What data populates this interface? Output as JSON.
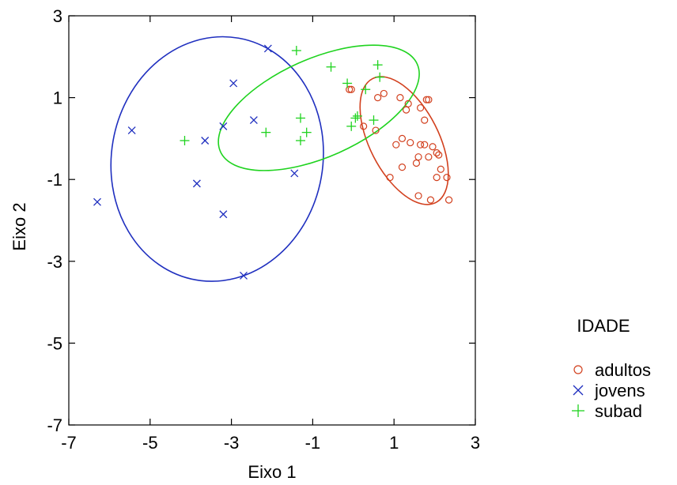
{
  "chart_data": {
    "type": "scatter",
    "xlabel": "Eixo 1",
    "ylabel": "Eixo 2",
    "xlim": [
      -7,
      3
    ],
    "ylim": [
      -7,
      3
    ],
    "xticks": [
      -7,
      -5,
      -3,
      -1,
      1,
      3
    ],
    "yticks": [
      3,
      1,
      -1,
      -3,
      -5,
      -7
    ],
    "xtick_labels": [
      "-7",
      "-5",
      "-3",
      "-1",
      "1",
      "3"
    ],
    "ytick_labels": [
      "3",
      "1",
      "-1",
      "-3",
      "-5",
      "-7"
    ],
    "grid": false,
    "legend": {
      "title": "IDADE",
      "placement": "right",
      "entries": [
        "adultos",
        "jovens",
        "subad"
      ]
    },
    "series": [
      {
        "name": "adultos",
        "marker": "circle",
        "color": "#d2401e",
        "points": [
          [
            -0.05,
            1.2
          ],
          [
            -0.1,
            1.2
          ],
          [
            0.6,
            1.0
          ],
          [
            0.75,
            1.1
          ],
          [
            1.15,
            1.0
          ],
          [
            1.3,
            0.7
          ],
          [
            1.65,
            0.75
          ],
          [
            1.85,
            0.95
          ],
          [
            1.35,
            0.85
          ],
          [
            1.75,
            0.45
          ],
          [
            1.8,
            0.95
          ],
          [
            0.25,
            0.3
          ],
          [
            0.55,
            0.2
          ],
          [
            1.2,
            0.0
          ],
          [
            1.4,
            -0.1
          ],
          [
            1.05,
            -0.15
          ],
          [
            1.65,
            -0.15
          ],
          [
            1.75,
            -0.15
          ],
          [
            1.95,
            -0.2
          ],
          [
            2.05,
            -0.35
          ],
          [
            2.1,
            -0.4
          ],
          [
            1.6,
            -0.45
          ],
          [
            1.85,
            -0.45
          ],
          [
            1.55,
            -0.6
          ],
          [
            1.2,
            -0.7
          ],
          [
            2.15,
            -0.75
          ],
          [
            2.05,
            -0.95
          ],
          [
            2.3,
            -0.95
          ],
          [
            0.9,
            -0.95
          ],
          [
            1.6,
            -1.4
          ],
          [
            1.9,
            -1.5
          ],
          [
            2.35,
            -1.5
          ]
        ]
      },
      {
        "name": "jovens",
        "marker": "x",
        "color": "#1f2fbf",
        "points": [
          [
            -2.1,
            2.2
          ],
          [
            -2.95,
            1.35
          ],
          [
            -5.45,
            0.2
          ],
          [
            -3.2,
            0.3
          ],
          [
            -2.45,
            0.45
          ],
          [
            -3.65,
            -0.05
          ],
          [
            -1.45,
            -0.85
          ],
          [
            -3.85,
            -1.1
          ],
          [
            -6.3,
            -1.55
          ],
          [
            -3.2,
            -1.85
          ],
          [
            -2.7,
            -3.35
          ]
        ]
      },
      {
        "name": "subad",
        "marker": "plus",
        "color": "#1fd31f",
        "points": [
          [
            -1.4,
            2.15
          ],
          [
            -0.55,
            1.75
          ],
          [
            0.6,
            1.8
          ],
          [
            0.65,
            1.5
          ],
          [
            -0.15,
            1.35
          ],
          [
            0.3,
            1.2
          ],
          [
            -1.3,
            0.5
          ],
          [
            0.1,
            0.55
          ],
          [
            0.05,
            0.5
          ],
          [
            -2.15,
            0.15
          ],
          [
            -1.15,
            0.15
          ],
          [
            -0.05,
            0.3
          ],
          [
            0.5,
            0.45
          ],
          [
            -4.15,
            -0.05
          ],
          [
            -1.3,
            -0.05
          ]
        ]
      }
    ],
    "ellipses": [
      {
        "series": "adultos",
        "color": "#d2401e",
        "center": [
          1.25,
          -0.05
        ],
        "rx_data": 0.85,
        "ry_data": 1.7,
        "rotation_deg": -27
      },
      {
        "series": "jovens",
        "color": "#1f2fbf",
        "center": [
          -3.35,
          -0.5
        ],
        "rx_data": 2.6,
        "ry_data": 3.0,
        "rotation_deg": 10
      },
      {
        "series": "subad",
        "color": "#1fd31f",
        "center": [
          -0.85,
          0.75
        ],
        "rx_data": 2.65,
        "ry_data": 1.2,
        "rotation_deg": -24
      }
    ]
  }
}
